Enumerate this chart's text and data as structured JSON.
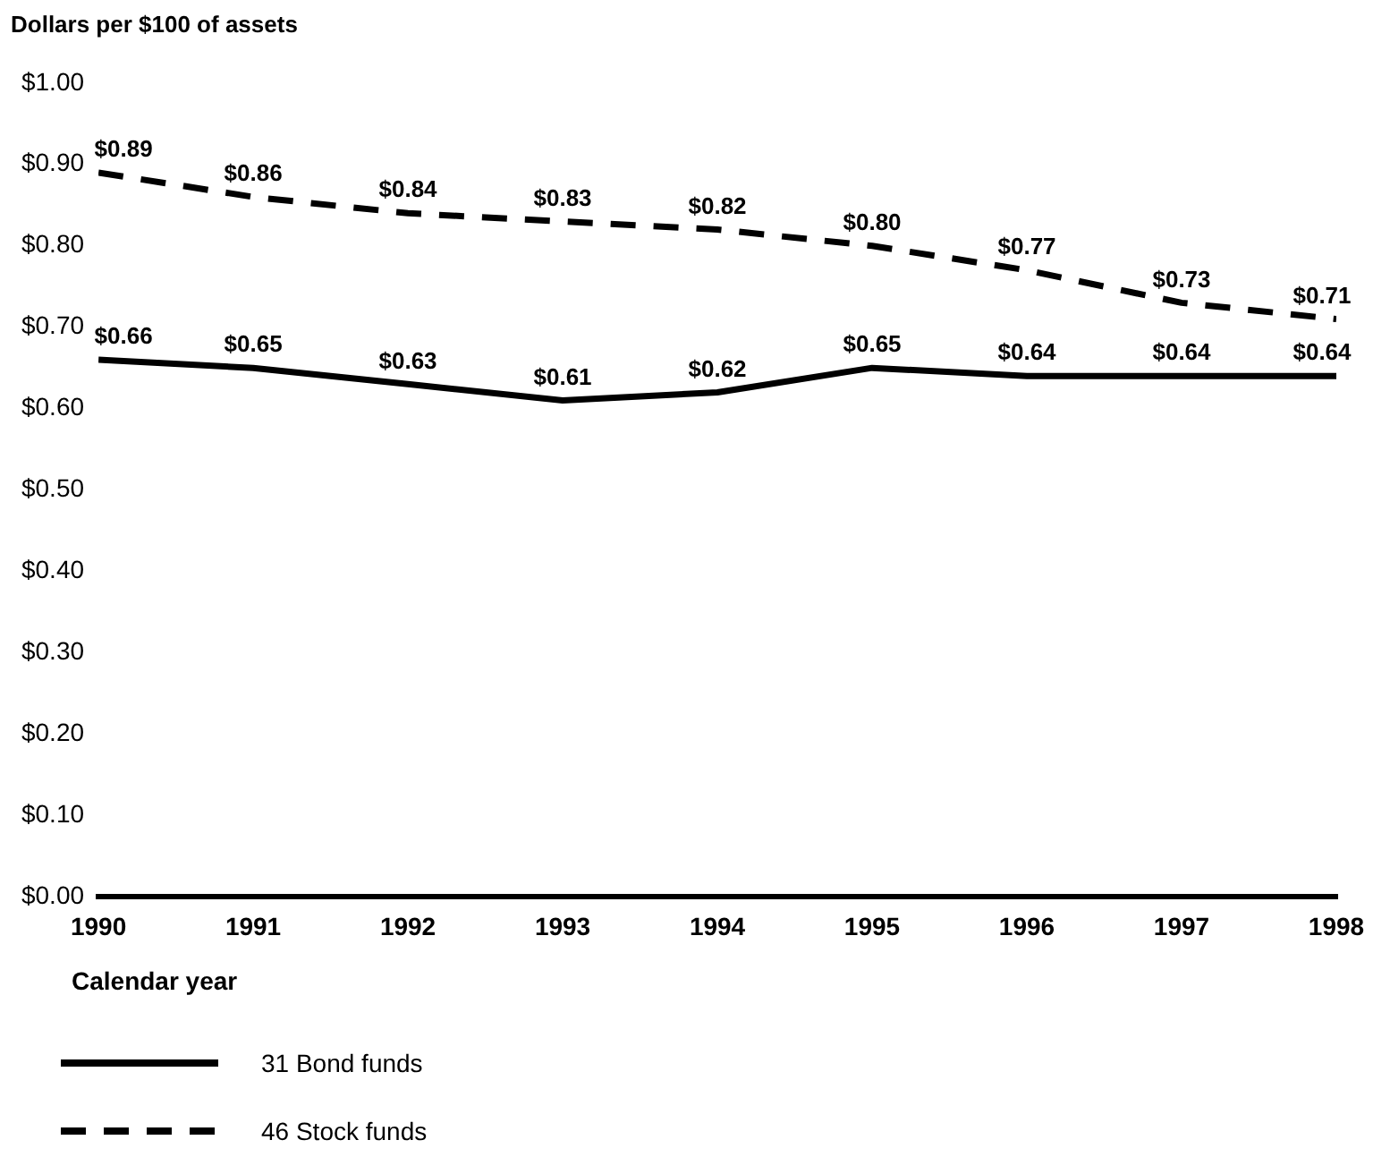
{
  "chart_data": {
    "type": "line",
    "ylabel": "Dollars per $100 of assets",
    "xlabel": "Calendar year",
    "x": [
      1990,
      1991,
      1992,
      1993,
      1994,
      1995,
      1996,
      1997,
      1998
    ],
    "xlim": [
      1990,
      1998
    ],
    "xticks": [
      1990,
      1991,
      1992,
      1993,
      1994,
      1995,
      1996,
      1997,
      1998
    ],
    "ylim": [
      0,
      1
    ],
    "yticks": [
      {
        "value": 0,
        "label": "$0.00"
      },
      {
        "value": 0.1,
        "label": "$0.10"
      },
      {
        "value": 0.2,
        "label": "$0.20"
      },
      {
        "value": 0.3,
        "label": "$0.30"
      },
      {
        "value": 0.4,
        "label": "$0.40"
      },
      {
        "value": 0.5,
        "label": "$0.50"
      },
      {
        "value": 0.6,
        "label": "$0.60"
      },
      {
        "value": 0.7,
        "label": "$0.70"
      },
      {
        "value": 0.8,
        "label": "$0.80"
      },
      {
        "value": 0.9,
        "label": "$0.90"
      },
      {
        "value": 1,
        "label": "$1.00"
      }
    ],
    "series": [
      {
        "name": "31 Bond funds",
        "color": "#000000",
        "line_style": "solid",
        "values": [
          0.66,
          0.65,
          0.63,
          0.61,
          0.62,
          0.65,
          0.64,
          0.64,
          0.64
        ],
        "value_labels": [
          "$0.66",
          "$0.65",
          "$0.63",
          "$0.61",
          "$0.62",
          "$0.65",
          "$0.64",
          "$0.64",
          "$0.64"
        ]
      },
      {
        "name": "46 Stock funds",
        "color": "#000000",
        "line_style": "dashed",
        "values": [
          0.89,
          0.86,
          0.84,
          0.83,
          0.82,
          0.8,
          0.77,
          0.73,
          0.71
        ],
        "value_labels": [
          "$0.89",
          "$0.86",
          "$0.84",
          "$0.83",
          "$0.82",
          "$0.80",
          "$0.77",
          "$0.73",
          "$0.71"
        ]
      }
    ],
    "grid": false,
    "legend": "bottom",
    "marker": "none"
  }
}
